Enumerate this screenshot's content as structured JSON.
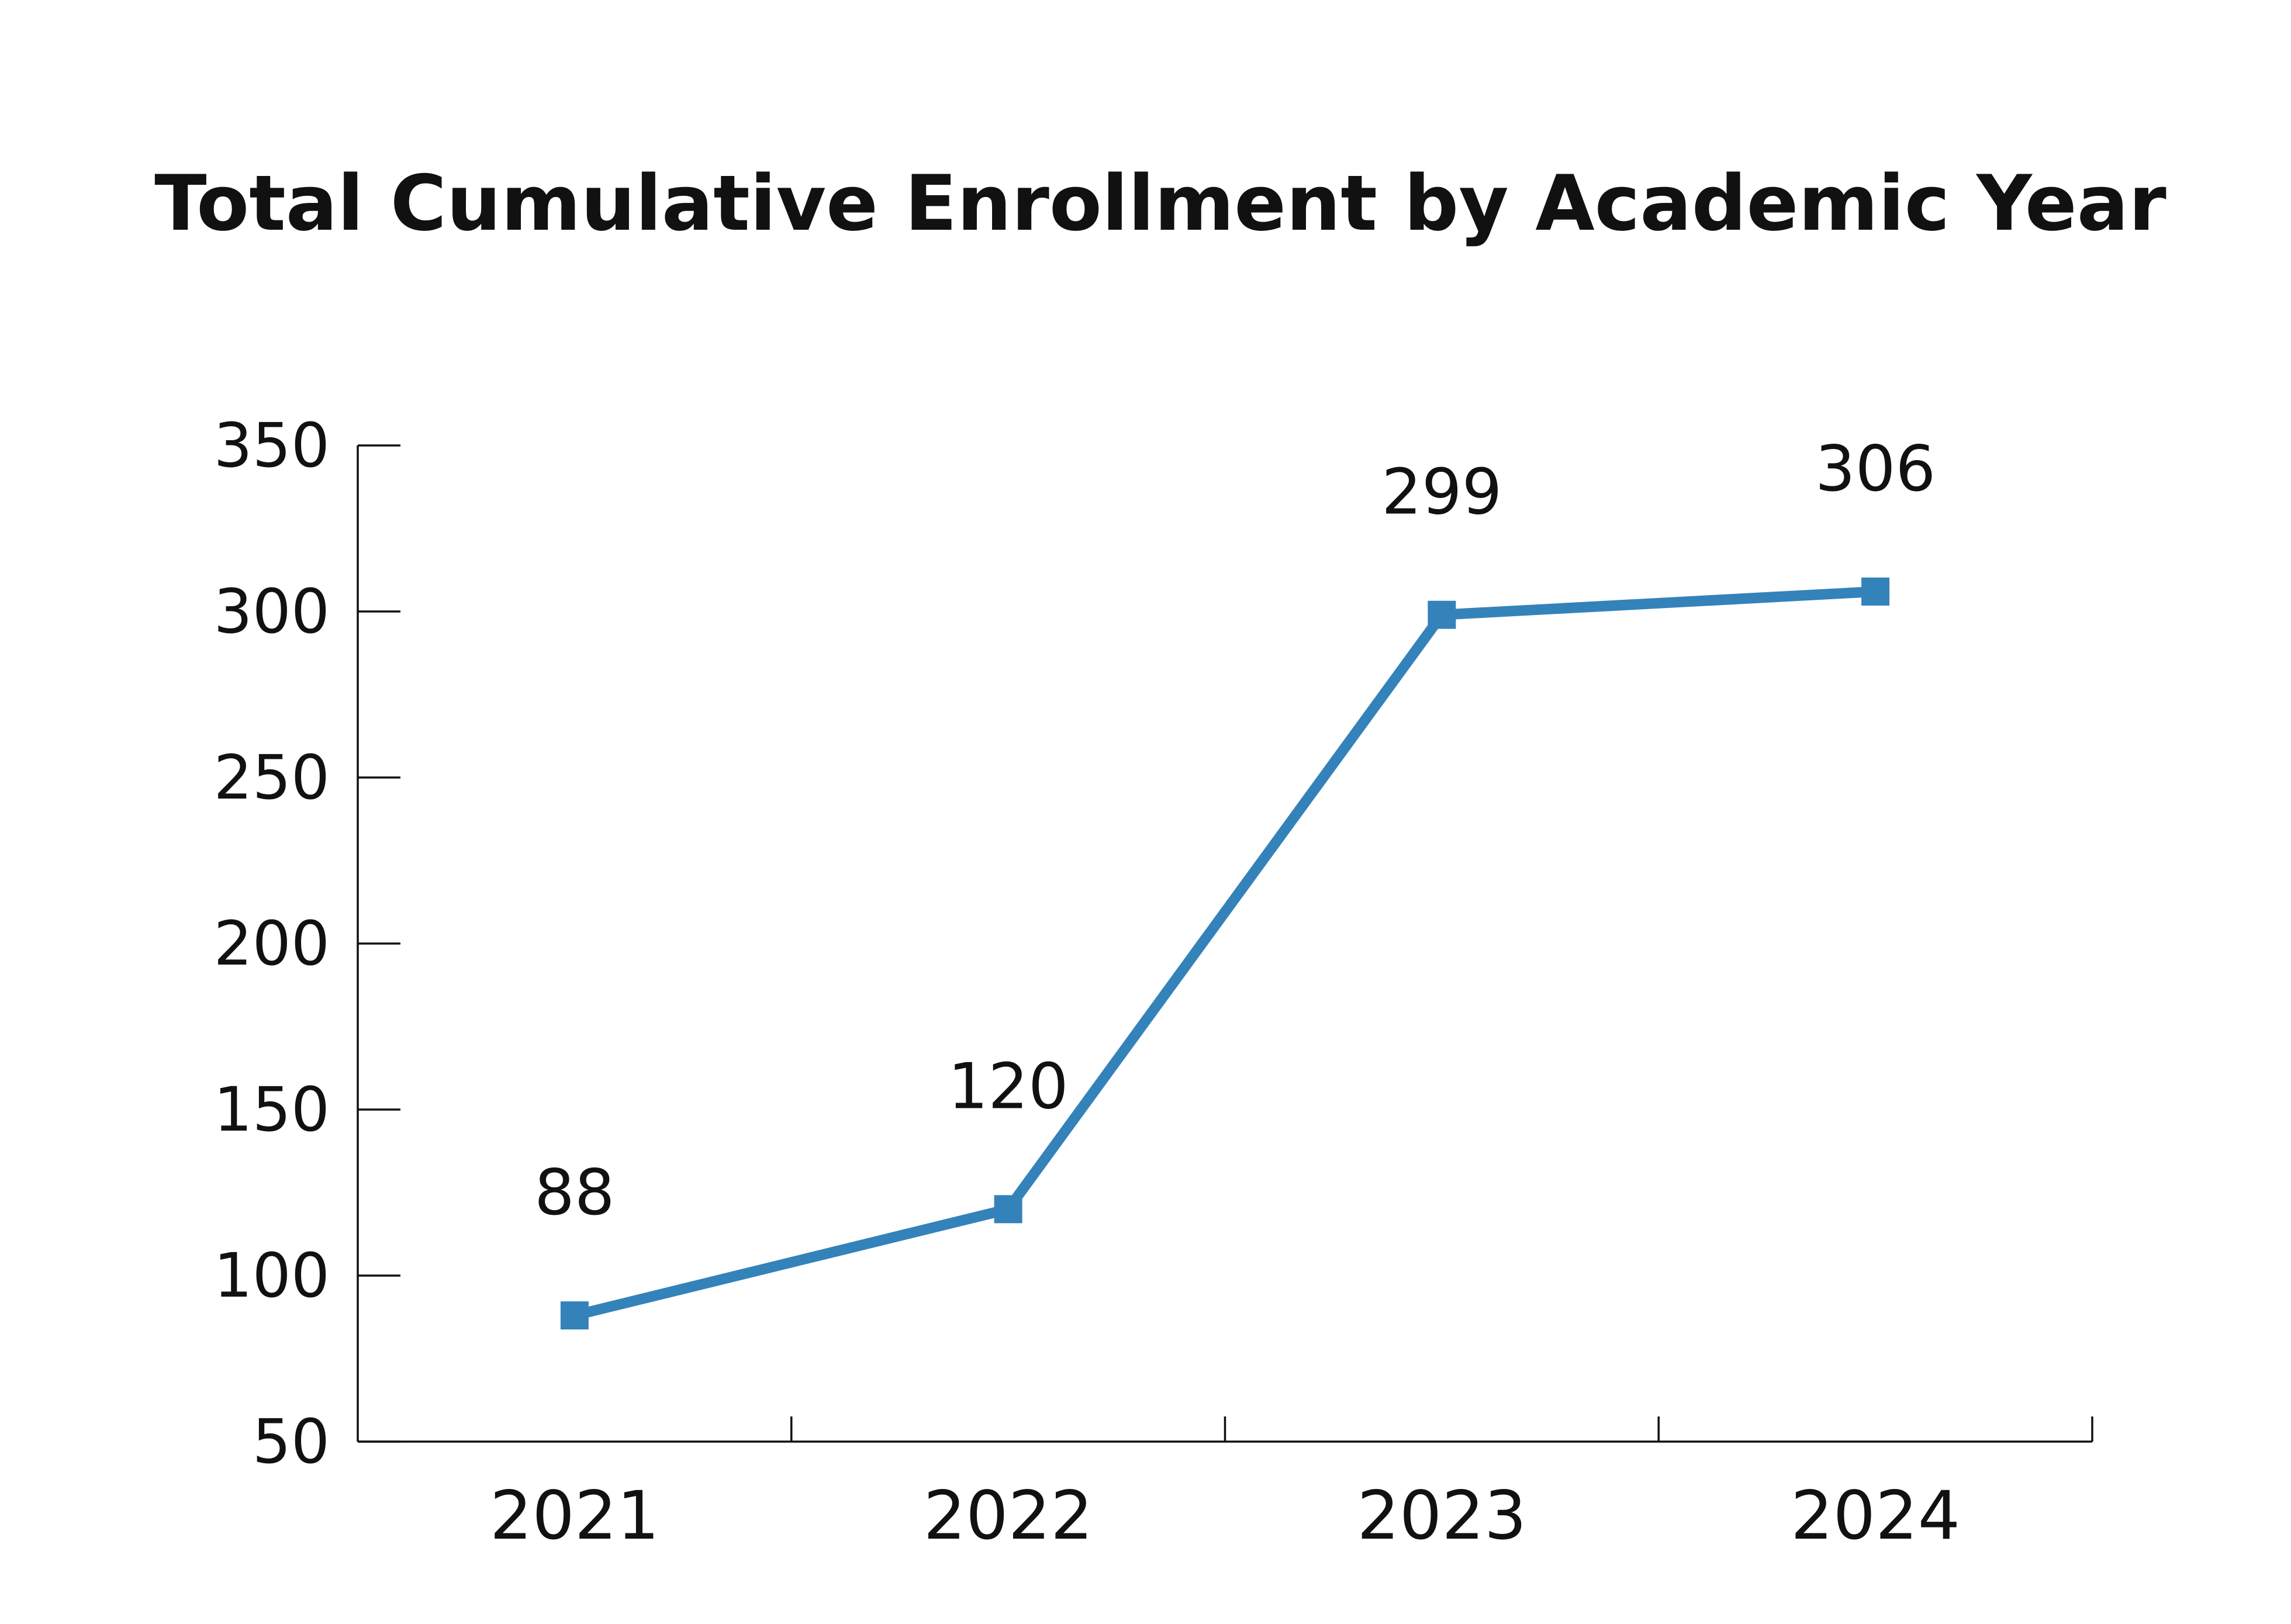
{
  "chart_data": {
    "type": "line",
    "title": "Total Cumulative Enrollment by Academic Year",
    "xlabel": "",
    "ylabel": "",
    "categories": [
      "2021",
      "2022",
      "2023",
      "2024"
    ],
    "series": [
      {
        "values": [
          88,
          120,
          299,
          306
        ],
        "color": "#3482ba",
        "marker": "square"
      }
    ],
    "data_labels": [
      "88",
      "120",
      "299",
      "306"
    ],
    "y_ticks": [
      50,
      100,
      150,
      200,
      250,
      300,
      350
    ],
    "y_tick_labels": [
      "50",
      "100",
      "150",
      "200",
      "250",
      "300",
      "350"
    ],
    "ylim": [
      50,
      350
    ],
    "grid": false,
    "legend": "none",
    "colors": {
      "line": "#3482ba",
      "axis": "#111111",
      "text": "#111111",
      "background": "#ffffff"
    }
  }
}
